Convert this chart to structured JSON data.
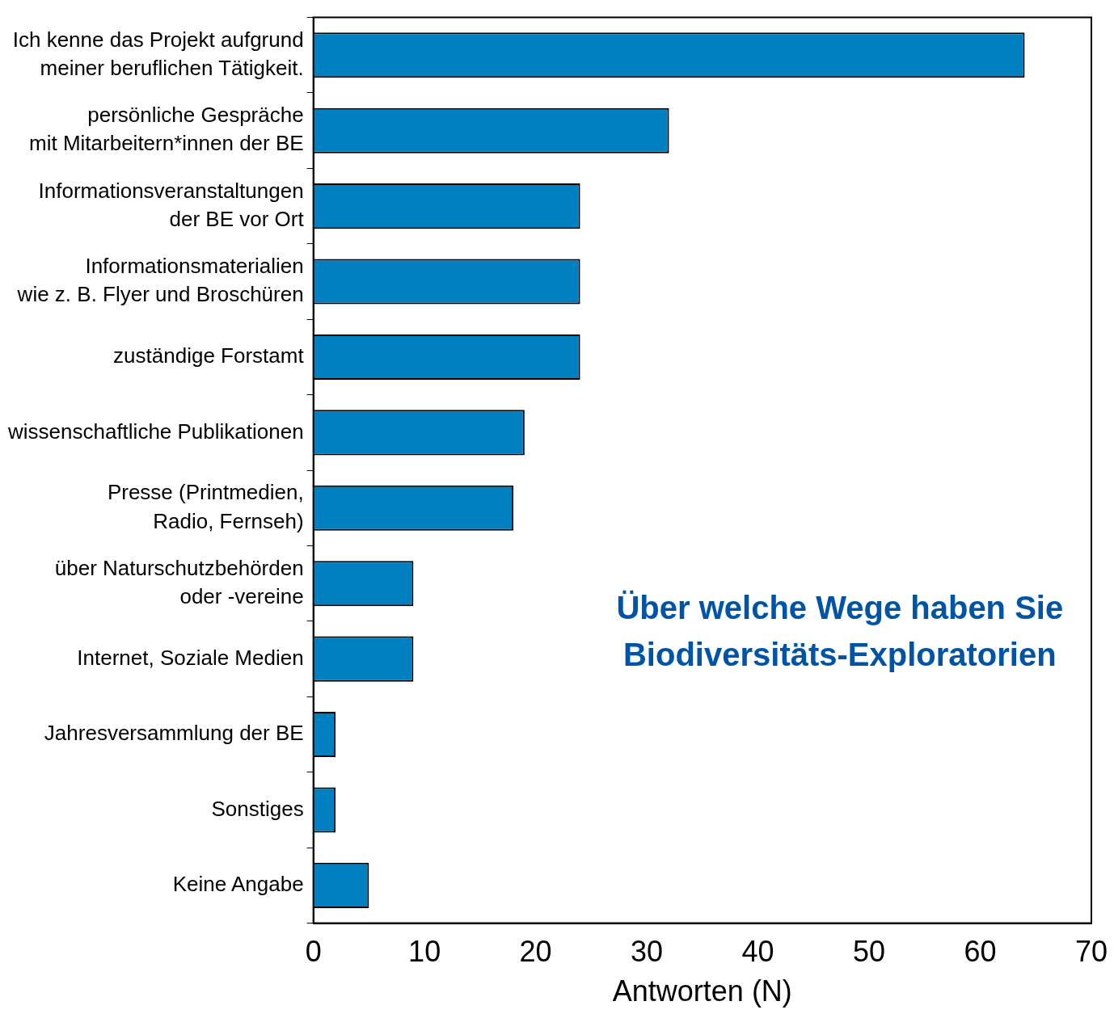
{
  "chart_data": {
    "type": "bar",
    "orientation": "horizontal",
    "categories": [
      "Ich kenne das Projekt aufgrund\nmeiner beruflichen Tätigkeit.",
      "persönliche Gespräche\nmit Mitarbeitern*innen der BE",
      "Informationsveranstaltungen\nder BE vor Ort",
      "Informationsmaterialien\nwie z. B. Flyer und Broschüren",
      "zuständige Forstamt",
      "wissenschaftliche Publikationen",
      "Presse (Printmedien,\nRadio, Fernseh)",
      "über Naturschutzbehörden\noder -vereine",
      "Internet, Soziale Medien",
      "Jahresversammlung der BE",
      "Sonstiges",
      "Keine Angabe"
    ],
    "values": [
      64,
      32,
      24,
      24,
      24,
      19,
      18,
      9,
      9,
      2,
      2,
      5
    ],
    "color": "#0080c0",
    "xlim": [
      0,
      70
    ],
    "xticks": [
      0,
      10,
      20,
      30,
      40,
      50,
      60,
      70
    ],
    "xlabel": "Antworten (N)",
    "annotations": [
      "Über welche Wege haben Sie\nBiodiversitäts-Exploratorien"
    ],
    "grid": false,
    "legend": false
  }
}
